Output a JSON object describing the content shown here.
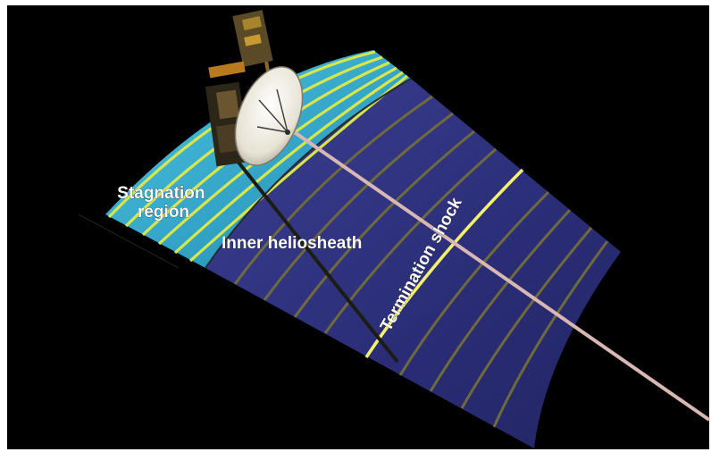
{
  "labels": {
    "stagnation_line1": "Stagnation",
    "stagnation_line2": "region",
    "inner_heliosheath": "Inner heliosheath",
    "termination_shock": "Termination shock"
  },
  "colors": {
    "space": "#000000",
    "frame": "#ffffff",
    "stagnation_region": "#2aa6c8",
    "inner_heliosheath": "#2c2f78",
    "stagnation_band": "#d9e64a",
    "termination_shock_line": "#f3f06a",
    "heliosheath_band": "#6f6a3c",
    "trajectory": "#d9b8b4",
    "label_text": "#ffffff"
  },
  "icons": {
    "spacecraft": "voyager-probe-icon"
  }
}
